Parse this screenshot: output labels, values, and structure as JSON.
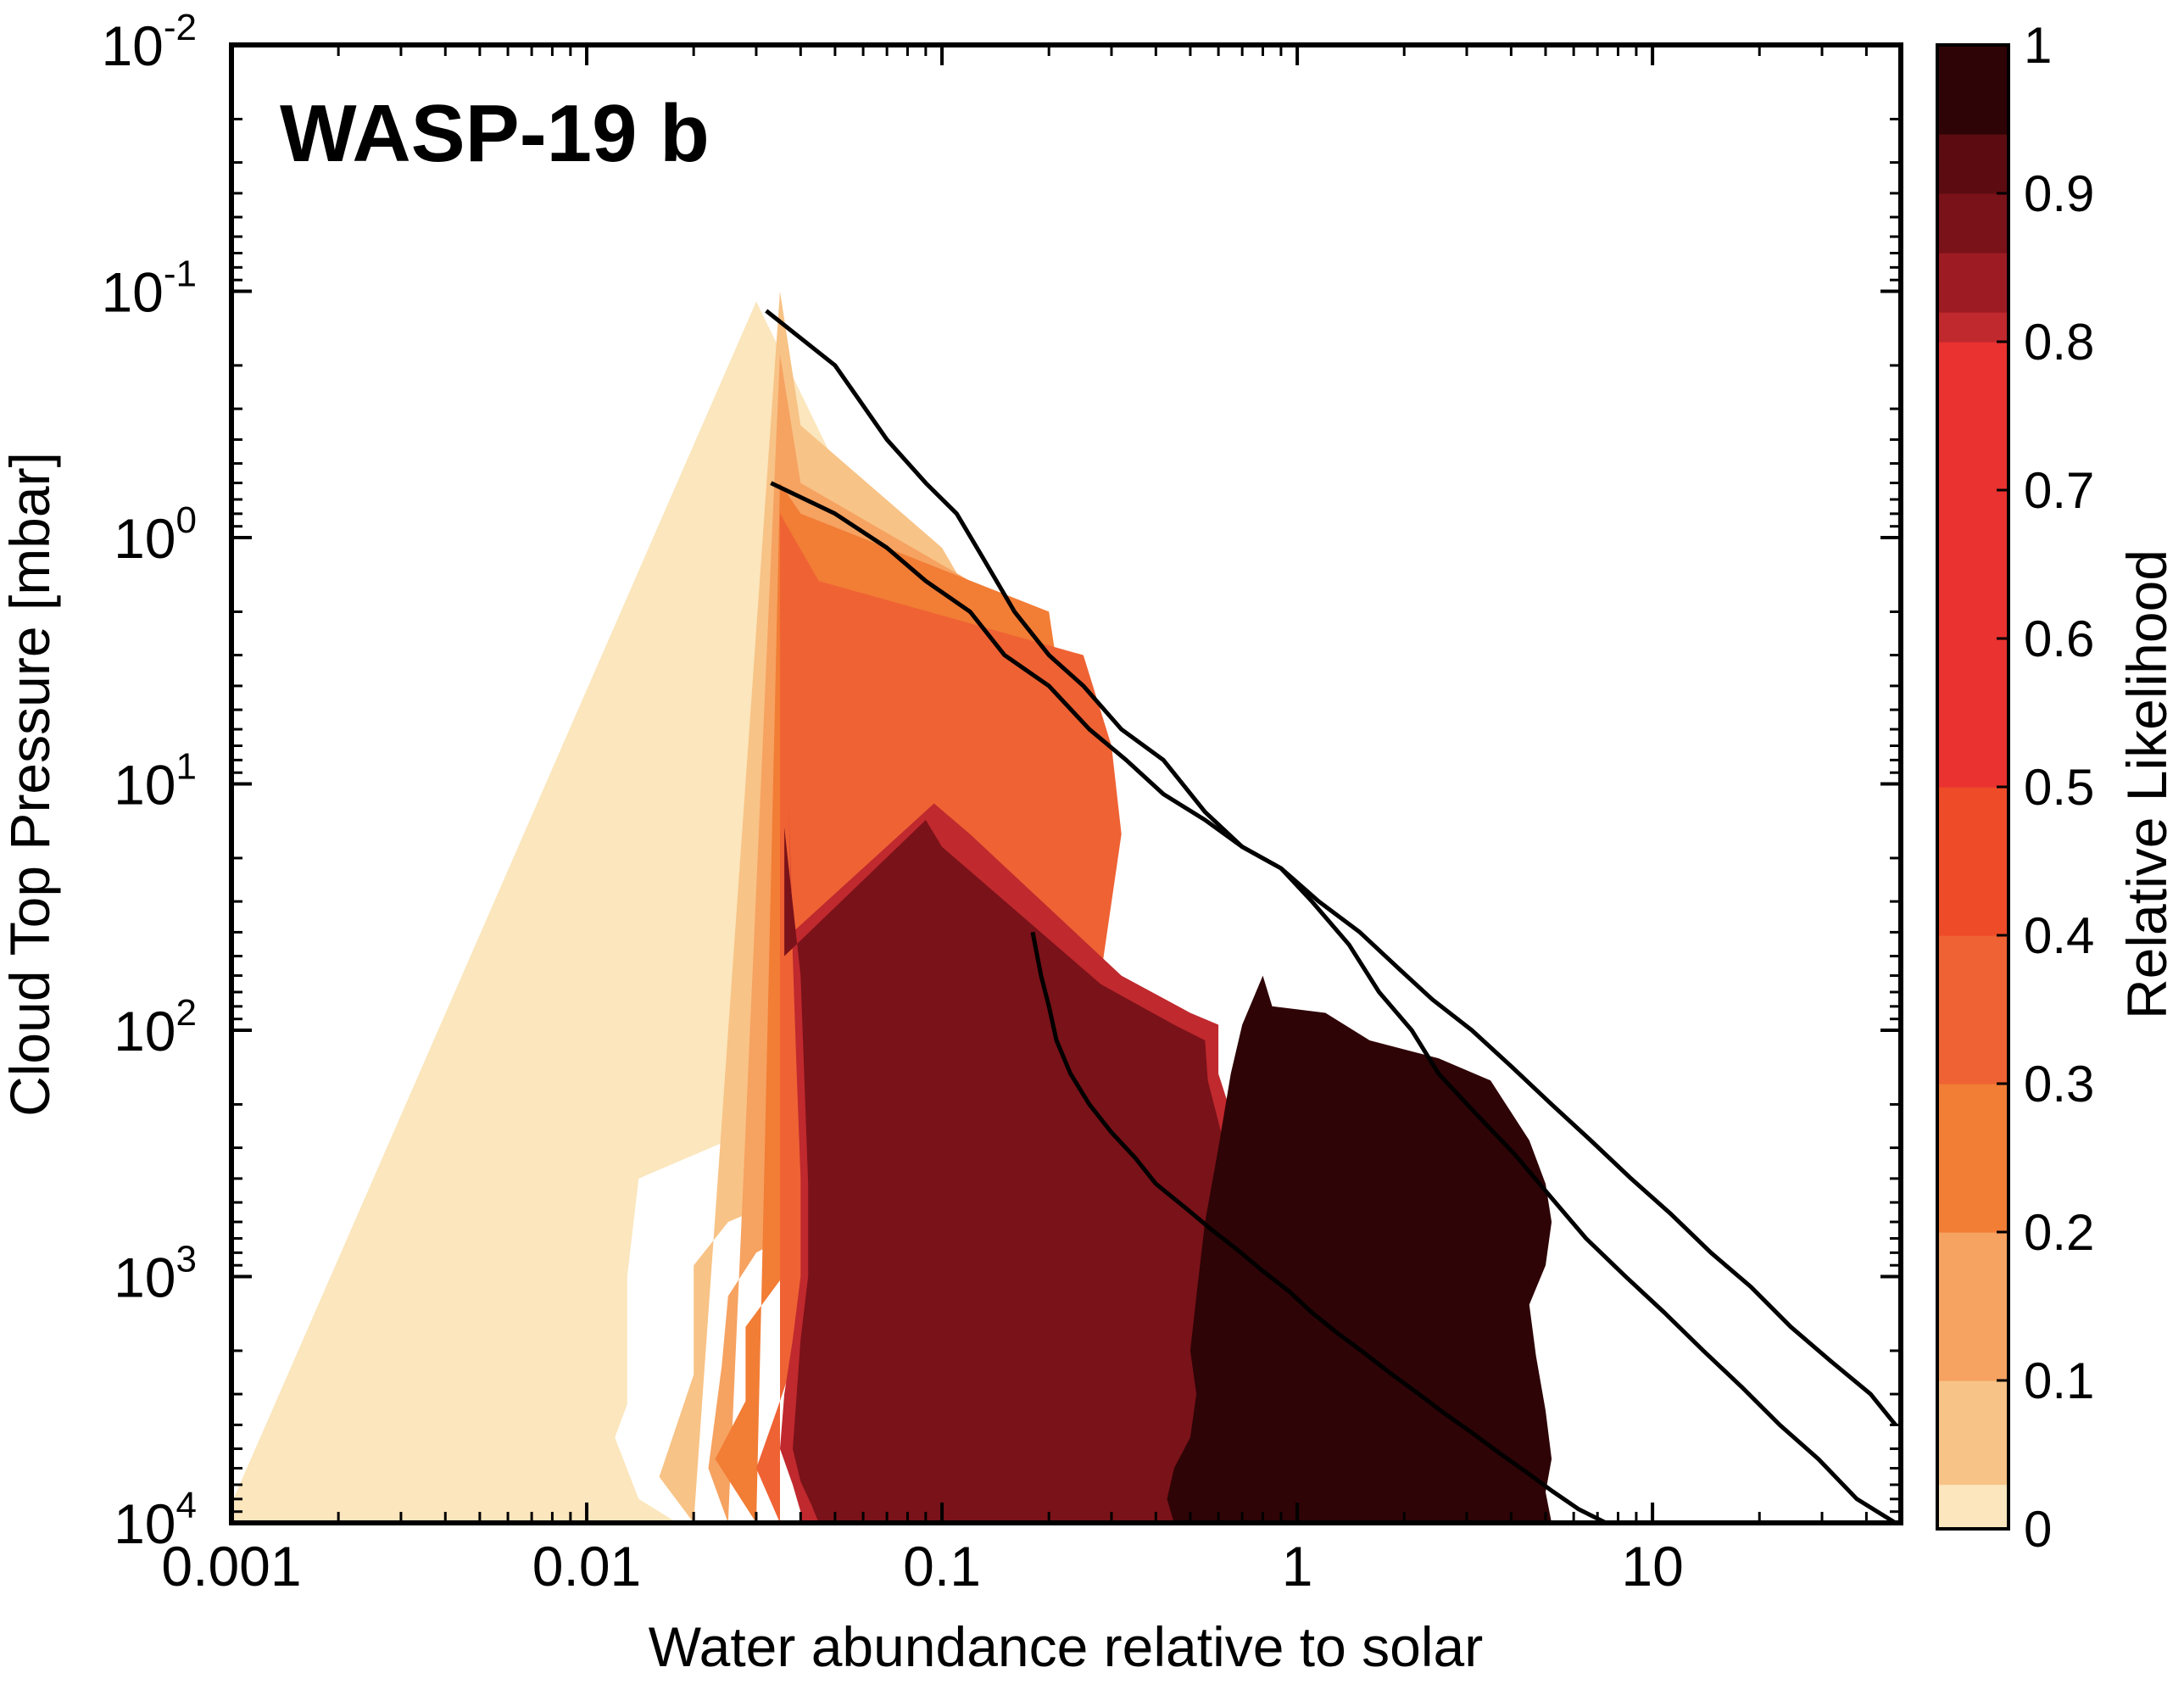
{
  "chart_data": {
    "type": "contour",
    "title": "WASP-19 b",
    "xlabel": "Water abundance relative to solar",
    "ylabel": "Cloud Top Pressure [mbar]",
    "x_scale": "log",
    "y_scale": "log",
    "y_inverted": true,
    "xlim": [
      0.001,
      50
    ],
    "ylim": [
      0.01,
      10000
    ],
    "x_ticks": [
      {
        "value": 0.001,
        "label": "0.001"
      },
      {
        "value": 0.01,
        "label": "0.01"
      },
      {
        "value": 0.1,
        "label": "0.1"
      },
      {
        "value": 1,
        "label": "1"
      },
      {
        "value": 10,
        "label": "10"
      }
    ],
    "y_ticks": [
      {
        "value": 0.01,
        "base": "10",
        "exp": "-2"
      },
      {
        "value": 0.1,
        "base": "10",
        "exp": "-1"
      },
      {
        "value": 1,
        "base": "10",
        "exp": "0"
      },
      {
        "value": 10,
        "base": "10",
        "exp": "1"
      },
      {
        "value": 100,
        "base": "10",
        "exp": "2"
      },
      {
        "value": 1000,
        "base": "10",
        "exp": "3"
      },
      {
        "value": 10000,
        "base": "10",
        "exp": "4"
      }
    ],
    "colorbar": {
      "label": "Relative Likelihood",
      "range": [
        0,
        1
      ],
      "ticks": [
        {
          "value": 0,
          "label": "0"
        },
        {
          "value": 0.1,
          "label": "0.1"
        },
        {
          "value": 0.2,
          "label": "0.2"
        },
        {
          "value": 0.3,
          "label": "0.3"
        },
        {
          "value": 0.4,
          "label": "0.4"
        },
        {
          "value": 0.5,
          "label": "0.5"
        },
        {
          "value": 0.6,
          "label": "0.6"
        },
        {
          "value": 0.7,
          "label": "0.7"
        },
        {
          "value": 0.8,
          "label": "0.8"
        },
        {
          "value": 0.9,
          "label": "0.9"
        },
        {
          "value": 1,
          "label": "1"
        }
      ],
      "levels": [
        {
          "from": 0.0,
          "to": 0.03,
          "color": "#fbe6bd"
        },
        {
          "from": 0.03,
          "to": 0.1,
          "color": "#f8c386"
        },
        {
          "from": 0.1,
          "to": 0.2,
          "color": "#f6a261"
        },
        {
          "from": 0.2,
          "to": 0.3,
          "color": "#f27d35"
        },
        {
          "from": 0.3,
          "to": 0.4,
          "color": "#ef6234"
        },
        {
          "from": 0.4,
          "to": 0.5,
          "color": "#ee4b28"
        },
        {
          "from": 0.5,
          "to": 0.8,
          "color": "#ea3230"
        },
        {
          "from": 0.8,
          "to": 0.82,
          "color": "#c0292e"
        },
        {
          "from": 0.82,
          "to": 0.86,
          "color": "#9d1c24"
        },
        {
          "from": 0.86,
          "to": 0.9,
          "color": "#7a1219"
        },
        {
          "from": 0.9,
          "to": 0.94,
          "color": "#5c0c10"
        },
        {
          "from": 0.94,
          "to": 1.0,
          "color": "#2f0406"
        }
      ]
    },
    "regions": [
      {
        "level": 0.03,
        "color": "#fbe6bd",
        "points": [
          [
            0.03,
            0.11
          ],
          [
            0.05,
            0.5
          ],
          [
            0.1,
            2.5
          ],
          [
            0.14,
            15
          ],
          [
            0.16,
            65
          ],
          [
            0.11,
            100
          ],
          [
            0.06,
            200
          ],
          [
            0.03,
            250
          ],
          [
            0.014,
            400
          ],
          [
            0.013,
            1000
          ],
          [
            0.013,
            3300
          ],
          [
            0.012,
            4500
          ],
          [
            0.014,
            8000
          ],
          [
            0.018,
            10000
          ],
          [
            0.0,
            10000
          ]
        ]
      },
      {
        "level": 0.1,
        "color": "#f8c386",
        "points": [
          [
            0.035,
            0.1
          ],
          [
            0.04,
            0.35
          ],
          [
            0.1,
            1.1
          ],
          [
            0.15,
            3
          ],
          [
            0.22,
            11
          ],
          [
            0.2,
            40
          ],
          [
            0.16,
            90
          ],
          [
            0.13,
            130
          ],
          [
            0.1,
            200
          ],
          [
            0.06,
            330
          ],
          [
            0.04,
            450
          ],
          [
            0.025,
            600
          ],
          [
            0.02,
            900
          ],
          [
            0.02,
            2500
          ],
          [
            0.016,
            6500
          ],
          [
            0.02,
            10000
          ]
        ]
      },
      {
        "level": 0.2,
        "color": "#f6a261",
        "points": [
          [
            0.035,
            0.18
          ],
          [
            0.04,
            0.6
          ],
          [
            0.12,
            1.5
          ],
          [
            0.16,
            4
          ],
          [
            0.28,
            12
          ],
          [
            0.25,
            45
          ],
          [
            0.2,
            95
          ],
          [
            0.14,
            150
          ],
          [
            0.08,
            330
          ],
          [
            0.055,
            500
          ],
          [
            0.03,
            800
          ],
          [
            0.025,
            1200
          ],
          [
            0.024,
            2300
          ],
          [
            0.022,
            6000
          ],
          [
            0.025,
            10000
          ]
        ]
      },
      {
        "level": 0.3,
        "color": "#f27d35",
        "points": [
          [
            0.035,
            0.6
          ],
          [
            0.04,
            0.8
          ],
          [
            0.2,
            2
          ],
          [
            0.22,
            5
          ],
          [
            0.3,
            15
          ],
          [
            0.25,
            55
          ],
          [
            0.18,
            110
          ],
          [
            0.12,
            220
          ],
          [
            0.07,
            380
          ],
          [
            0.048,
            560
          ],
          [
            0.028,
            1600
          ],
          [
            0.028,
            3200
          ],
          [
            0.023,
            5500
          ],
          [
            0.03,
            10000
          ]
        ]
      },
      {
        "level": 0.4,
        "color": "#ef6234",
        "points": [
          [
            0.035,
            0.8
          ],
          [
            0.045,
            1.5
          ],
          [
            0.25,
            3
          ],
          [
            0.3,
            7
          ],
          [
            0.32,
            16
          ],
          [
            0.28,
            60
          ],
          [
            0.2,
            130
          ],
          [
            0.14,
            250
          ],
          [
            0.08,
            400
          ],
          [
            0.05,
            700
          ],
          [
            0.04,
            1800
          ],
          [
            0.035,
            3200
          ],
          [
            0.03,
            6000
          ],
          [
            0.035,
            10000
          ]
        ]
      },
      {
        "level": 0.8,
        "color": "#c0292e",
        "points": [
          [
            0.037,
            12
          ],
          [
            0.038,
            40
          ],
          [
            0.095,
            12
          ],
          [
            0.12,
            16
          ],
          [
            0.32,
            60
          ],
          [
            0.5,
            85
          ],
          [
            0.6,
            95
          ],
          [
            0.6,
            150
          ],
          [
            0.7,
            300
          ],
          [
            0.95,
            600
          ],
          [
            1.1,
            1100
          ],
          [
            1.0,
            2200
          ],
          [
            0.8,
            4000
          ],
          [
            0.6,
            6500
          ],
          [
            0.55,
            10000
          ],
          [
            0.04,
            10000
          ],
          [
            0.04,
            9000
          ],
          [
            0.038,
            7000
          ],
          [
            0.035,
            5000
          ],
          [
            0.036,
            3000
          ],
          [
            0.038,
            1800
          ],
          [
            0.04,
            1000
          ],
          [
            0.04,
            400
          ],
          [
            0.039,
            150
          ],
          [
            0.038,
            50
          ]
        ]
      },
      {
        "level": 0.86,
        "color": "#7a1219",
        "points": [
          [
            0.036,
            15
          ],
          [
            0.036,
            50
          ],
          [
            0.09,
            14
          ],
          [
            0.1,
            18
          ],
          [
            0.28,
            65
          ],
          [
            0.45,
            95
          ],
          [
            0.55,
            110
          ],
          [
            0.56,
            160
          ],
          [
            0.63,
            310
          ],
          [
            0.85,
            600
          ],
          [
            0.95,
            1100
          ],
          [
            0.9,
            2200
          ],
          [
            0.72,
            3900
          ],
          [
            0.57,
            6500
          ],
          [
            0.52,
            10000
          ],
          [
            0.045,
            10000
          ],
          [
            0.043,
            8500
          ],
          [
            0.04,
            6800
          ],
          [
            0.038,
            5000
          ],
          [
            0.039,
            3000
          ],
          [
            0.04,
            1800
          ],
          [
            0.042,
            1000
          ],
          [
            0.042,
            420
          ],
          [
            0.041,
            160
          ],
          [
            0.04,
            60
          ]
        ]
      },
      {
        "level": 0.94,
        "color": "#2f0406",
        "points": [
          [
            0.8,
            60
          ],
          [
            0.85,
            80
          ],
          [
            1.2,
            85
          ],
          [
            1.6,
            110
          ],
          [
            2.5,
            130
          ],
          [
            3.5,
            160
          ],
          [
            4.5,
            280
          ],
          [
            5.0,
            420
          ],
          [
            5.2,
            600
          ],
          [
            5.0,
            900
          ],
          [
            4.5,
            1300
          ],
          [
            4.7,
            2100
          ],
          [
            5.0,
            3500
          ],
          [
            5.2,
            5500
          ],
          [
            5.0,
            7500
          ],
          [
            5.2,
            10000
          ],
          [
            0.45,
            10000
          ],
          [
            0.43,
            8000
          ],
          [
            0.45,
            6000
          ],
          [
            0.5,
            4500
          ],
          [
            0.52,
            3000
          ],
          [
            0.5,
            2000
          ],
          [
            0.52,
            1200
          ],
          [
            0.55,
            600
          ],
          [
            0.6,
            300
          ],
          [
            0.65,
            150
          ],
          [
            0.7,
            95
          ]
        ]
      }
    ],
    "contour_lines": [
      {
        "level": 0.03,
        "points": [
          [
            0.032,
            0.12
          ],
          [
            0.05,
            0.2
          ],
          [
            0.07,
            0.4
          ],
          [
            0.09,
            0.6
          ],
          [
            0.11,
            0.8
          ],
          [
            0.13,
            1.2
          ],
          [
            0.16,
            2
          ],
          [
            0.2,
            3
          ],
          [
            0.25,
            4
          ],
          [
            0.32,
            6
          ],
          [
            0.42,
            8
          ],
          [
            0.55,
            13
          ],
          [
            0.7,
            18
          ],
          [
            0.9,
            22
          ],
          [
            1.1,
            30
          ],
          [
            1.4,
            45
          ],
          [
            1.7,
            70
          ],
          [
            2.1,
            100
          ],
          [
            2.5,
            150
          ],
          [
            3.2,
            220
          ],
          [
            4.1,
            320
          ],
          [
            5.2,
            480
          ],
          [
            6.5,
            700
          ],
          [
            8.4,
            1000
          ],
          [
            10.8,
            1400
          ],
          [
            13.9,
            2000
          ],
          [
            17.8,
            2800
          ],
          [
            22.8,
            4000
          ],
          [
            29.3,
            5500
          ],
          [
            37.6,
            8000
          ],
          [
            48.3,
            10000
          ]
        ]
      },
      {
        "level": 0.3,
        "points": [
          [
            0.033,
            0.6
          ],
          [
            0.05,
            0.8
          ],
          [
            0.07,
            1.1
          ],
          [
            0.09,
            1.5
          ],
          [
            0.12,
            2
          ],
          [
            0.15,
            3
          ],
          [
            0.2,
            4
          ],
          [
            0.26,
            6
          ],
          [
            0.33,
            8
          ],
          [
            0.42,
            11
          ],
          [
            0.55,
            14
          ],
          [
            0.7,
            18
          ],
          [
            0.9,
            22
          ],
          [
            1.15,
            30
          ],
          [
            1.5,
            40
          ],
          [
            1.9,
            55
          ],
          [
            2.4,
            75
          ],
          [
            3.1,
            100
          ],
          [
            4.0,
            140
          ],
          [
            5.2,
            200
          ],
          [
            6.7,
            280
          ],
          [
            8.7,
            400
          ],
          [
            11.3,
            560
          ],
          [
            14.6,
            800
          ],
          [
            18.9,
            1100
          ],
          [
            24.5,
            1600
          ],
          [
            31.7,
            2200
          ],
          [
            41.1,
            3000
          ],
          [
            48.3,
            4000
          ]
        ]
      },
      {
        "level": 0.8,
        "points": [
          [
            0.18,
            40
          ],
          [
            0.19,
            60
          ],
          [
            0.2,
            80
          ],
          [
            0.21,
            110
          ],
          [
            0.23,
            150
          ],
          [
            0.26,
            200
          ],
          [
            0.3,
            260
          ],
          [
            0.35,
            330
          ],
          [
            0.4,
            420
          ],
          [
            0.48,
            520
          ],
          [
            0.57,
            640
          ],
          [
            0.68,
            780
          ],
          [
            0.8,
            950
          ],
          [
            0.95,
            1150
          ],
          [
            1.1,
            1400
          ],
          [
            1.3,
            1700
          ],
          [
            1.55,
            2050
          ],
          [
            1.85,
            2500
          ],
          [
            2.2,
            3000
          ],
          [
            2.6,
            3600
          ],
          [
            3.1,
            4300
          ],
          [
            3.7,
            5200
          ],
          [
            4.4,
            6200
          ],
          [
            5.2,
            7400
          ],
          [
            6.2,
            8800
          ],
          [
            7.4,
            10000
          ]
        ]
      }
    ]
  }
}
